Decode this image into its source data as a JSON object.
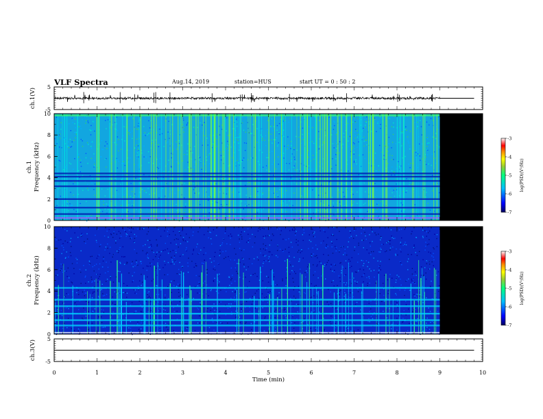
{
  "header": {
    "title": "VLF Spectra",
    "date": "Aug.14, 2019",
    "station": "station=HUS",
    "start": "start  UT =  0 : 50 : 2"
  },
  "chart_data": [
    {
      "type": "line",
      "panel": "waveform ch.1",
      "ylabel": "ch.1(V)",
      "ylim": [
        -5,
        5
      ],
      "yticks": [
        "5",
        "-5"
      ],
      "xlim": [
        0,
        10
      ],
      "data_end_min": 9.0,
      "baseline": 0,
      "color": "#000000"
    },
    {
      "type": "heatmap",
      "panel": "spectrogram ch.1",
      "ylabel_top": "ch.1",
      "ylabel": "Frequency (kHz)",
      "ylim": [
        0,
        10
      ],
      "yticks": [
        "0",
        "2",
        "4",
        "6",
        "8",
        "10"
      ],
      "xlim": [
        0,
        10
      ],
      "data_end_min": 9.0,
      "no_data_fill": "#000000",
      "colorbar": {
        "label": "log(PSD)(V²/Hz)",
        "range": [
          -7,
          -3
        ],
        "ticks": [
          "-3",
          "-4",
          "-5",
          "-6",
          "-7"
        ]
      }
    },
    {
      "type": "heatmap",
      "panel": "spectrogram ch.2",
      "ylabel_top": "ch.2",
      "ylabel": "Frequency (kHz)",
      "ylim": [
        0,
        10
      ],
      "yticks": [
        "0",
        "2",
        "4",
        "6",
        "8",
        "10"
      ],
      "xlim": [
        0,
        10
      ],
      "data_end_min": 9.0,
      "no_data_fill": "#000000",
      "colorbar": {
        "label": "log(PSD)(V²/Hz)",
        "range": [
          -7,
          -3
        ],
        "ticks": [
          "-3",
          "-4",
          "-5",
          "-6",
          "-7"
        ]
      }
    },
    {
      "type": "line",
      "panel": "waveform ch.3",
      "ylabel": "ch.3(V)",
      "ylim": [
        -5,
        5
      ],
      "yticks": [
        "5",
        "-5"
      ],
      "xlim": [
        0,
        10
      ],
      "baseline": 0,
      "color": "#000000"
    }
  ],
  "xaxis": {
    "label": "Time (min)",
    "ticks": [
      "0",
      "1",
      "2",
      "3",
      "4",
      "5",
      "6",
      "7",
      "8",
      "9",
      "10"
    ]
  }
}
